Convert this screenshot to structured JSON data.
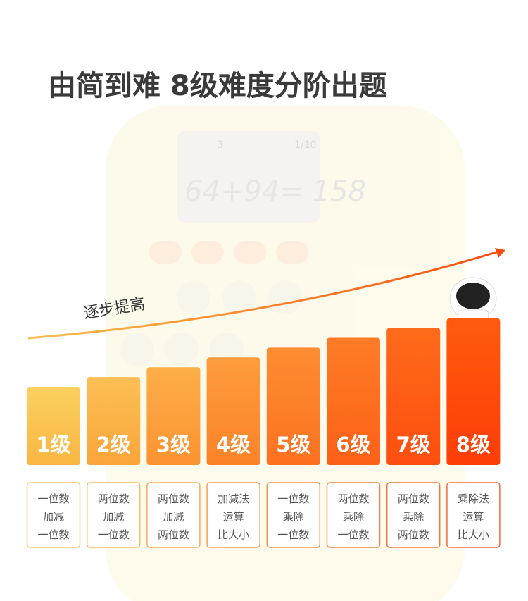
{
  "title": "由简到难 8级难度分阶出题",
  "trend_label": "逐步提高",
  "device_display": {
    "top_left": "3",
    "top_right": "1/10",
    "equation": "64+94= 158"
  },
  "levels": [
    {
      "label": "1级",
      "lines": [
        "一位数",
        "加减",
        "一位数"
      ]
    },
    {
      "label": "2级",
      "lines": [
        "两位数",
        "加减",
        "一位数"
      ]
    },
    {
      "label": "3级",
      "lines": [
        "两位数",
        "加减",
        "两位数"
      ]
    },
    {
      "label": "4级",
      "lines": [
        "加减法",
        "运算",
        "比大小"
      ]
    },
    {
      "label": "5级",
      "lines": [
        "一位数",
        "乘除",
        "一位数"
      ]
    },
    {
      "label": "6级",
      "lines": [
        "两位数",
        "乘除",
        "一位数"
      ]
    },
    {
      "label": "7级",
      "lines": [
        "两位数",
        "乘除",
        "两位数"
      ]
    },
    {
      "label": "8级",
      "lines": [
        "乘除法",
        "运算",
        "比大小"
      ]
    }
  ]
}
